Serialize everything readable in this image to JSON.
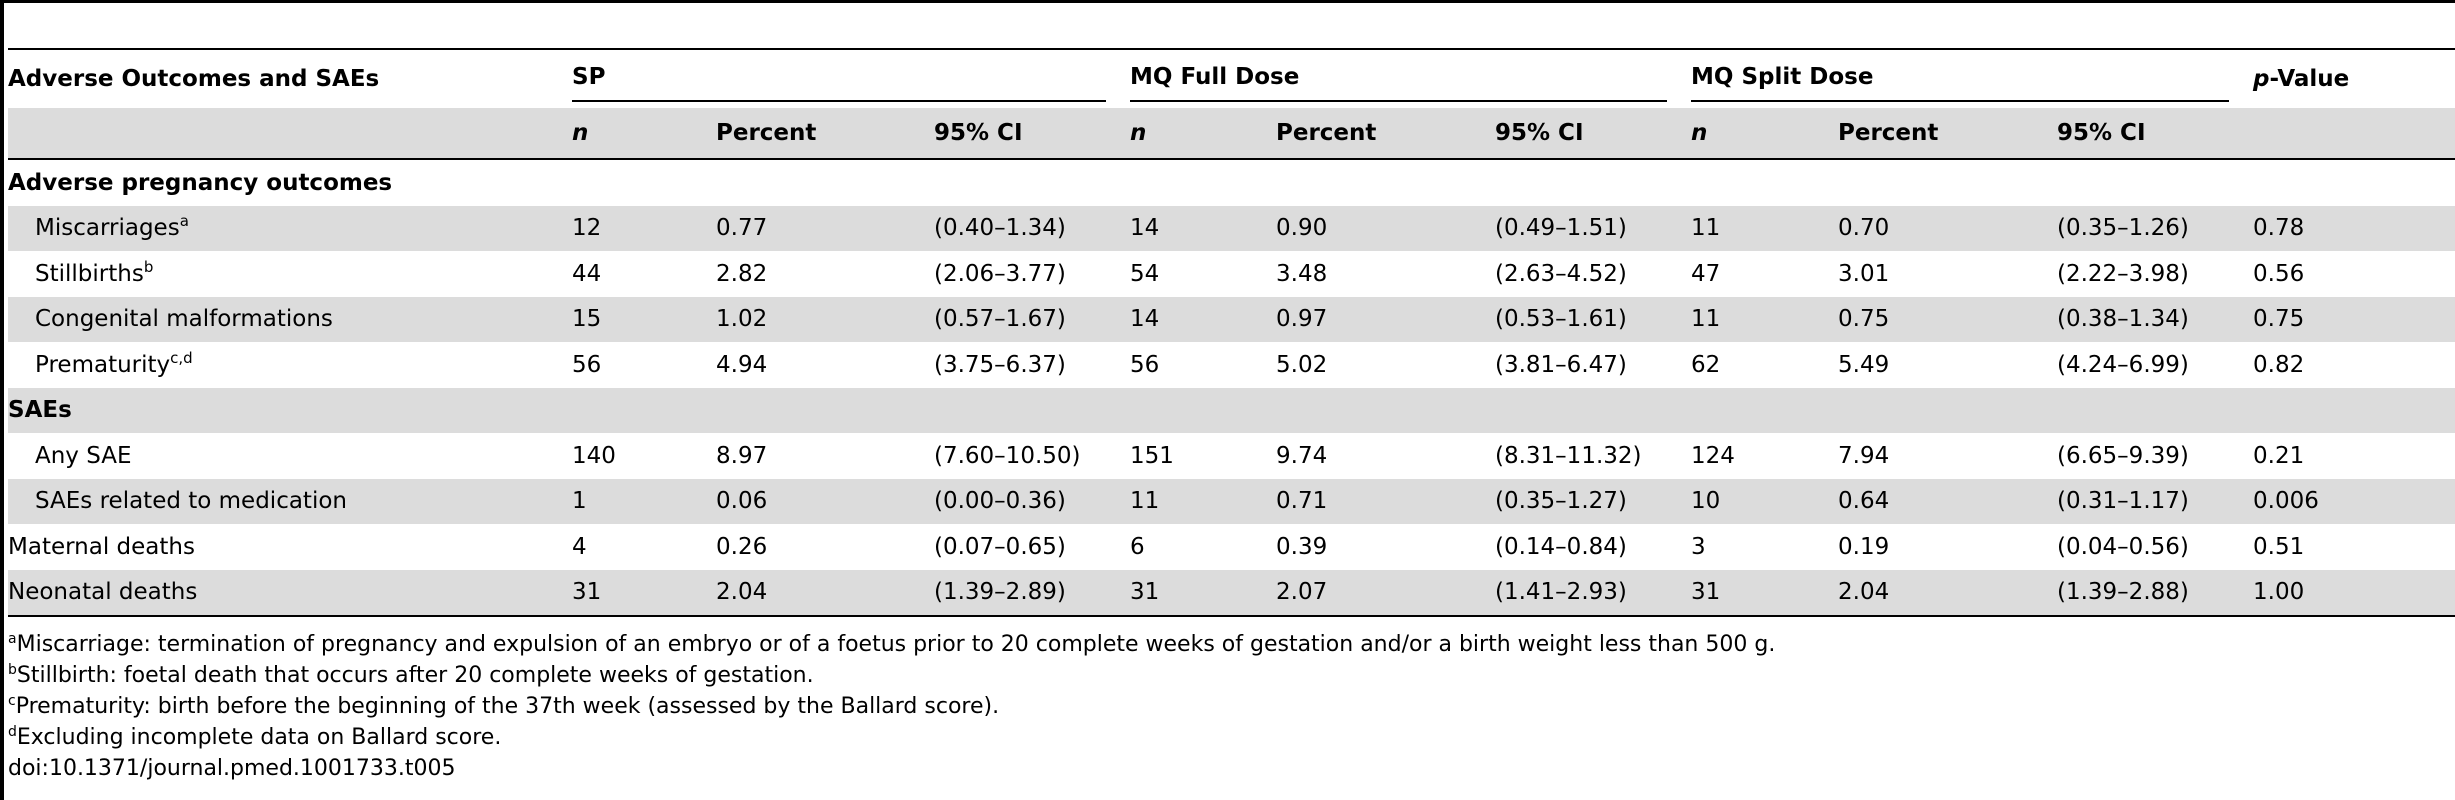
{
  "table": {
    "headers": {
      "row_label": "Adverse Outcomes and SAEs",
      "groups": [
        "SP",
        "MQ Full Dose",
        "MQ Split Dose"
      ],
      "pvalue_prefix": "p",
      "pvalue_suffix": "-Value",
      "sub": [
        "n",
        "Percent",
        "95% CI"
      ]
    },
    "sections": {
      "adverse_pregnancy": "Adverse pregnancy outcomes",
      "saes": "SAEs"
    },
    "rows": [
      {
        "label": "Miscarriages",
        "sup": "a",
        "sp_n": "12",
        "sp_pct": "0.77",
        "sp_ci": "(0.40–1.34)",
        "fd_n": "14",
        "fd_pct": "0.90",
        "fd_ci": "(0.49–1.51)",
        "sd_n": "11",
        "sd_pct": "0.70",
        "sd_ci": "(0.35–1.26)",
        "p": "0.78"
      },
      {
        "label": "Stillbirths",
        "sup": "b",
        "sp_n": "44",
        "sp_pct": "2.82",
        "sp_ci": "(2.06–3.77)",
        "fd_n": "54",
        "fd_pct": "3.48",
        "fd_ci": "(2.63–4.52)",
        "sd_n": "47",
        "sd_pct": "3.01",
        "sd_ci": "(2.22–3.98)",
        "p": "0.56"
      },
      {
        "label": "Congenital malformations",
        "sup": "",
        "sp_n": "15",
        "sp_pct": "1.02",
        "sp_ci": "(0.57–1.67)",
        "fd_n": "14",
        "fd_pct": "0.97",
        "fd_ci": "(0.53–1.61)",
        "sd_n": "11",
        "sd_pct": "0.75",
        "sd_ci": "(0.38–1.34)",
        "p": "0.75"
      },
      {
        "label": "Prematurity",
        "sup": "c,d",
        "sp_n": "56",
        "sp_pct": "4.94",
        "sp_ci": "(3.75–6.37)",
        "fd_n": "56",
        "fd_pct": "5.02",
        "fd_ci": "(3.81–6.47)",
        "sd_n": "62",
        "sd_pct": "5.49",
        "sd_ci": "(4.24–6.99)",
        "p": "0.82"
      },
      {
        "label": "Any SAE",
        "sup": "",
        "sp_n": "140",
        "sp_pct": "8.97",
        "sp_ci": "(7.60–10.50)",
        "fd_n": "151",
        "fd_pct": "9.74",
        "fd_ci": "(8.31–11.32)",
        "sd_n": "124",
        "sd_pct": "7.94",
        "sd_ci": "(6.65–9.39)",
        "p": "0.21"
      },
      {
        "label": "SAEs related to medication",
        "sup": "",
        "sp_n": "1",
        "sp_pct": "0.06",
        "sp_ci": "(0.00–0.36)",
        "fd_n": "11",
        "fd_pct": "0.71",
        "fd_ci": "(0.35–1.27)",
        "sd_n": "10",
        "sd_pct": "0.64",
        "sd_ci": "(0.31–1.17)",
        "p": "0.006"
      },
      {
        "label": "Maternal deaths",
        "sup": "",
        "sp_n": "4",
        "sp_pct": "0.26",
        "sp_ci": "(0.07–0.65)",
        "fd_n": "6",
        "fd_pct": "0.39",
        "fd_ci": "(0.14–0.84)",
        "sd_n": "3",
        "sd_pct": "0.19",
        "sd_ci": "(0.04–0.56)",
        "p": "0.51"
      },
      {
        "label": "Neonatal deaths",
        "sup": "",
        "sp_n": "31",
        "sp_pct": "2.04",
        "sp_ci": "(1.39–2.89)",
        "fd_n": "31",
        "fd_pct": "2.07",
        "fd_ci": "(1.41–2.93)",
        "sd_n": "31",
        "sd_pct": "2.04",
        "sd_ci": "(1.39–2.88)",
        "p": "1.00"
      }
    ]
  },
  "footnotes": [
    {
      "sup": "a",
      "text": "Miscarriage: termination of pregnancy and expulsion of an embryo or of a foetus prior to 20 complete weeks of gestation and/or a birth weight less than 500 g."
    },
    {
      "sup": "b",
      "text": "Stillbirth: foetal death that occurs after 20 complete weeks of gestation."
    },
    {
      "sup": "c",
      "text": "Prematurity: birth before the beginning of the 37th week (assessed by the Ballard score)."
    },
    {
      "sup": "d",
      "text": "Excluding incomplete data on Ballard score."
    }
  ],
  "doi": "doi:10.1371/journal.pmed.1001733.t005"
}
